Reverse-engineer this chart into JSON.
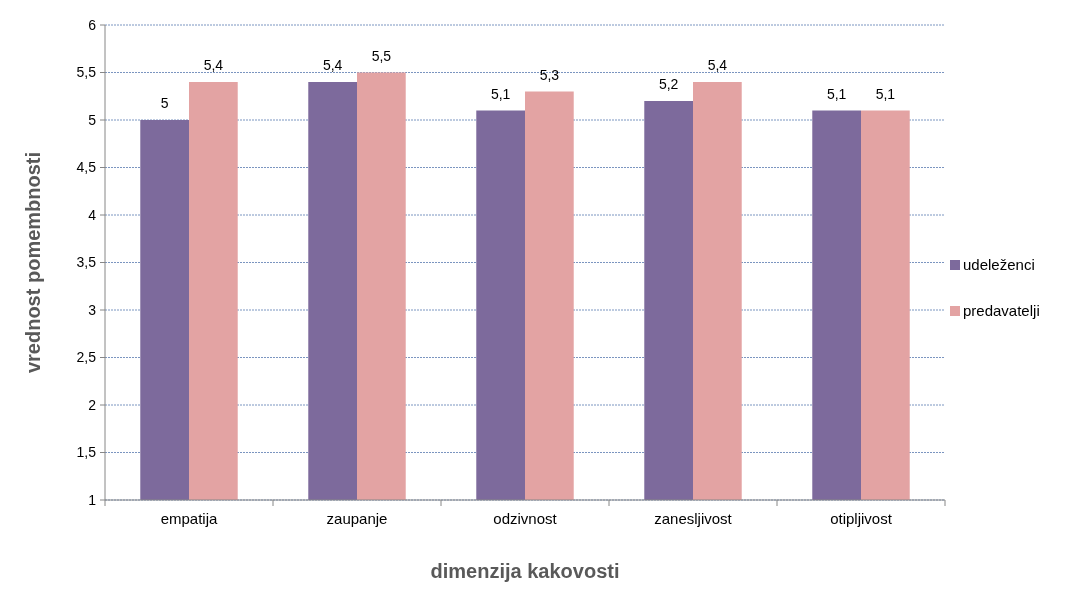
{
  "chart_data": {
    "type": "bar",
    "xlabel": "dimenzija kakovosti",
    "ylabel": "vrednost pomembnosti",
    "categories": [
      "empatija",
      "zaupanje",
      "odzivnost",
      "zanesljivost",
      "otipljivost"
    ],
    "series": [
      {
        "name": "udeleženci",
        "color": "#7d6a9c",
        "values": [
          5,
          5.4,
          5.1,
          5.2,
          5.1
        ],
        "value_labels": [
          "5",
          "5,4",
          "5,1",
          "5,2",
          "5,1"
        ]
      },
      {
        "name": "predavatelji",
        "color": "#e3a3a3",
        "values": [
          5.4,
          5.5,
          5.3,
          5.4,
          5.1
        ],
        "value_labels": [
          "5,4",
          "5,5",
          "5,3",
          "5,4",
          "5,1"
        ]
      }
    ],
    "ylim": [
      1,
      6
    ],
    "yticks": [
      1,
      {
        "value": 1.5,
        "label": "1,5"
      },
      2,
      {
        "value": 2.5,
        "label": "2,5"
      },
      3,
      {
        "value": 3.5,
        "label": "3,5"
      },
      4,
      {
        "value": 4.5,
        "label": "4,5"
      },
      5,
      {
        "value": 5.5,
        "label": "5,5"
      },
      6
    ],
    "grid": "y",
    "legend": "right"
  }
}
